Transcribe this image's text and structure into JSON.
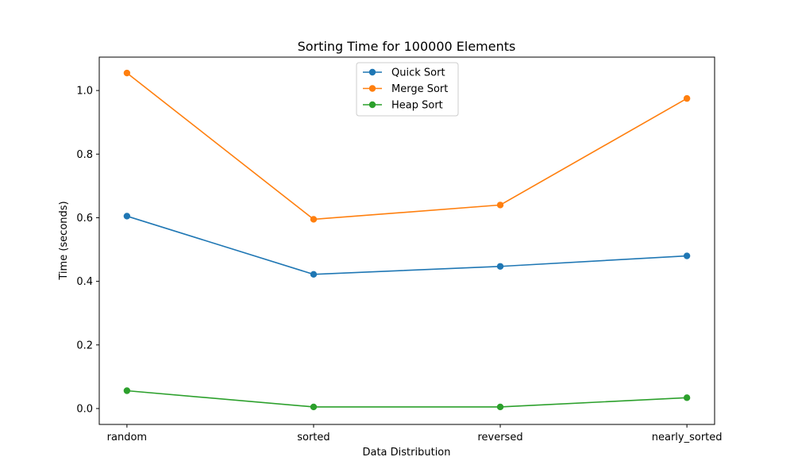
{
  "chart_data": {
    "type": "line",
    "title": "Sorting Time for 100000 Elements",
    "xlabel": "Data Distribution",
    "ylabel": "Time (seconds)",
    "categories": [
      "random",
      "sorted",
      "reversed",
      "nearly_sorted"
    ],
    "ylim": [
      -0.05,
      1.105
    ],
    "yticks": [
      0.0,
      0.2,
      0.4,
      0.6,
      0.8,
      1.0
    ],
    "ytick_labels": [
      "0.0",
      "0.2",
      "0.4",
      "0.6",
      "0.8",
      "1.0"
    ],
    "grid": false,
    "legend_position": "top-center",
    "series": [
      {
        "name": "Quick Sort",
        "color": "#1f77b4",
        "values": [
          0.605,
          0.422,
          0.447,
          0.48
        ]
      },
      {
        "name": "Merge Sort",
        "color": "#ff7f0e",
        "values": [
          1.055,
          0.595,
          0.64,
          0.975
        ]
      },
      {
        "name": "Heap Sort",
        "color": "#2ca02c",
        "values": [
          0.056,
          0.005,
          0.005,
          0.034
        ]
      }
    ]
  }
}
